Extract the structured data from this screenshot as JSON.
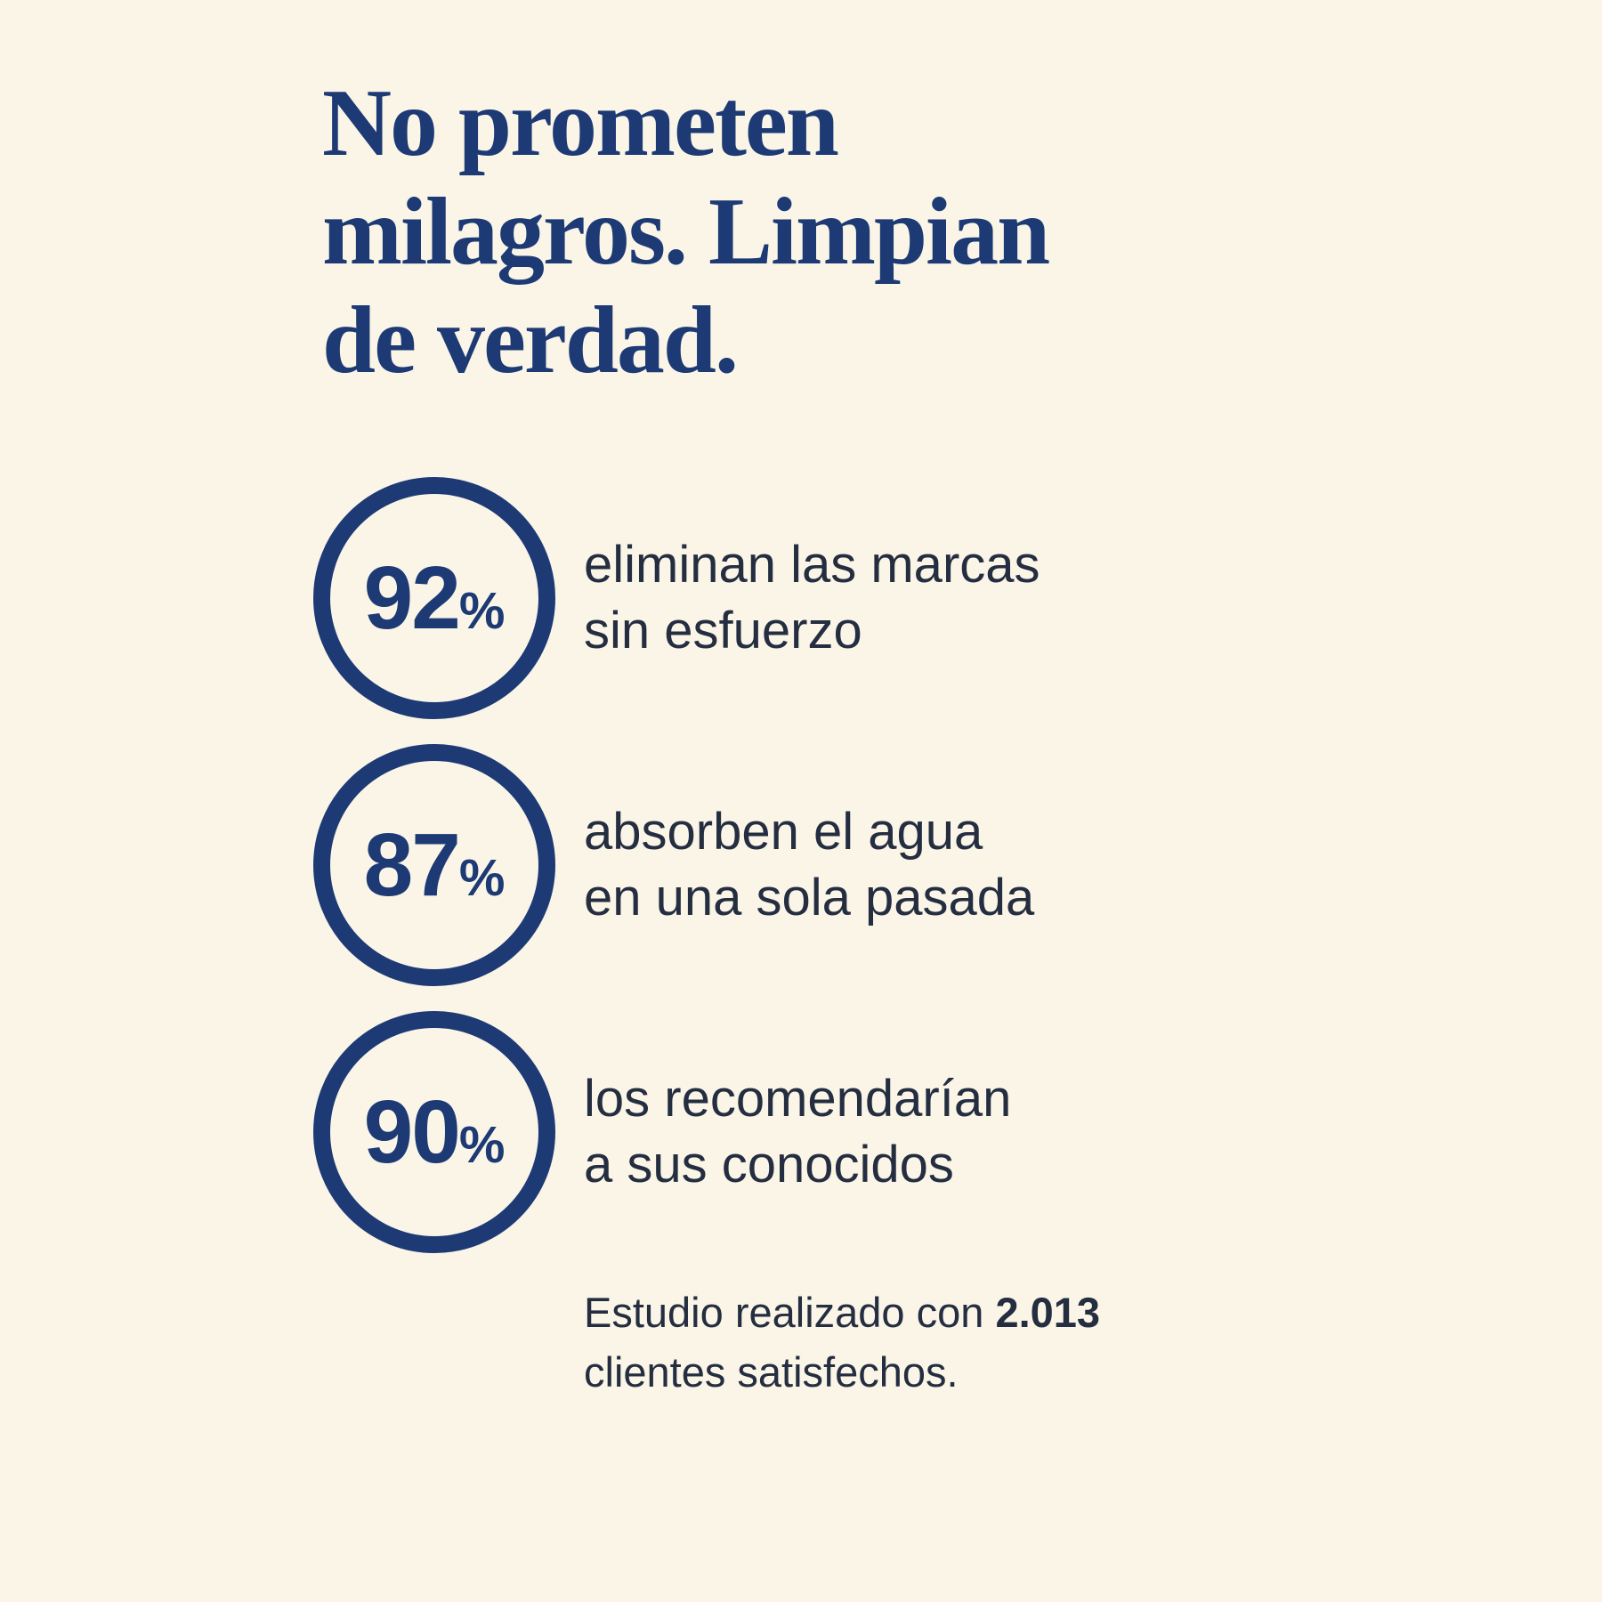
{
  "page": {
    "background_color": "#faf5e7",
    "accent_color": "#1d3a75",
    "text_color": "#242e40"
  },
  "headline": {
    "line1": "No prometen",
    "line2": "milagros. Limpian",
    "line3": "de verdad."
  },
  "stats": [
    {
      "number": "92",
      "suffix": "%",
      "label": "eliminan las marcas\nsin esfuerzo"
    },
    {
      "number": "87",
      "suffix": "%",
      "label": "absorben el agua\nen una sola pasada"
    },
    {
      "number": "90",
      "suffix": "%",
      "label": "los recomendarían\na sus conocidos"
    }
  ],
  "footnote": {
    "prefix": "Estudio realizado con ",
    "bold_value": "2.013",
    "line2": "clientes satisfechos."
  },
  "chart_data": {
    "type": "table",
    "title": "No prometen milagros. Limpian de verdad.",
    "categories": [
      "eliminan las marcas sin esfuerzo",
      "absorben el agua en una sola pasada",
      "los recomendarían a sus conocidos"
    ],
    "values": [
      92,
      87,
      90
    ],
    "unit": "%",
    "annotations": [
      "Estudio realizado con 2.013 clientes satisfechos."
    ]
  }
}
